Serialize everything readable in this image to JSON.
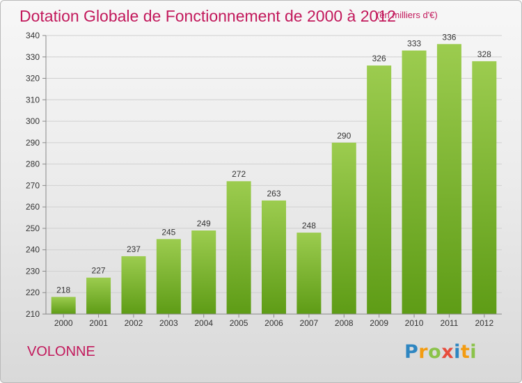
{
  "header": {
    "title": "Dotation Globale de Fonctionnement de 2000 à 2012",
    "subtitle": "(en milliers d'€)"
  },
  "footer": {
    "commune": "VOLONNE",
    "logo": [
      "P",
      "r",
      "o",
      "x",
      "i",
      "t",
      "i"
    ]
  },
  "colors": {
    "title": "#c2185b",
    "bar_top": "#9ccc4f",
    "bar_bottom": "#5e9c16",
    "logo": [
      "#2e86c1",
      "#f39c12",
      "#8bc34a",
      "#e74c3c",
      "#2e86c1",
      "#f39c12",
      "#8bc34a"
    ]
  },
  "chart_data": {
    "type": "bar",
    "title": "Dotation Globale de Fonctionnement de 2000 à 2012",
    "subtitle": "(en milliers d'€)",
    "categories": [
      "2000",
      "2001",
      "2002",
      "2003",
      "2004",
      "2005",
      "2006",
      "2007",
      "2008",
      "2009",
      "2010",
      "2011",
      "2012"
    ],
    "values": [
      218,
      227,
      237,
      245,
      249,
      272,
      263,
      248,
      290,
      326,
      333,
      336,
      328
    ],
    "ylim": [
      210,
      340
    ],
    "yticks": [
      210,
      220,
      230,
      240,
      250,
      260,
      270,
      280,
      290,
      300,
      310,
      320,
      330,
      340
    ],
    "grid": true,
    "data_labels": true
  }
}
